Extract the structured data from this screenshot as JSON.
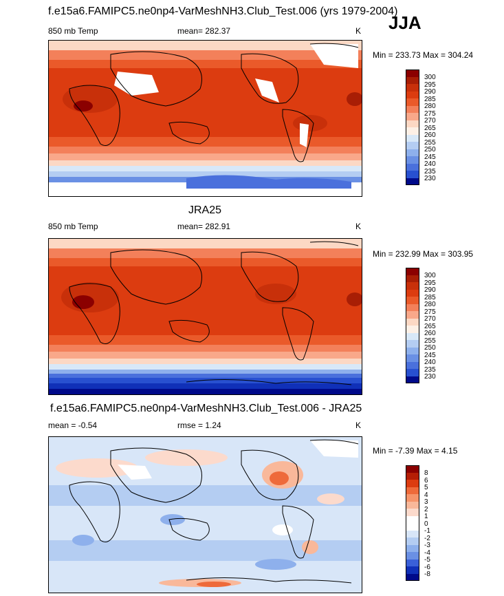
{
  "season": "JJA",
  "panels": [
    {
      "id": "model",
      "title": "f.e15a6.FAMIPC5.ne0np4-VarMeshNH3.Club_Test.006 (yrs 1979-2004)",
      "left_label": "850 mb Temp",
      "center_label": "mean= 282.37",
      "right_label": "K",
      "minmax": "Min = 233.73 Max = 304.24",
      "colorbar_labels": [
        "300",
        "295",
        "290",
        "285",
        "280",
        "275",
        "270",
        "265",
        "260",
        "255",
        "250",
        "245",
        "240",
        "235",
        "230"
      ]
    },
    {
      "id": "obs",
      "title": "JRA25",
      "left_label": "850 mb Temp",
      "center_label": "mean= 282.91",
      "right_label": "K",
      "minmax": "Min = 232.99 Max = 303.95",
      "colorbar_labels": [
        "300",
        "295",
        "290",
        "285",
        "280",
        "275",
        "270",
        "265",
        "260",
        "255",
        "250",
        "245",
        "240",
        "235",
        "230"
      ]
    },
    {
      "id": "diff",
      "title": "f.e15a6.FAMIPC5.ne0np4-VarMeshNH3.Club_Test.006 - JRA25",
      "left_label": "mean =  -0.54",
      "center_label": "rmse =   1.24",
      "right_label": "K",
      "minmax": "Min =  -7.39 Max =   4.15",
      "colorbar_labels": [
        "8",
        "6",
        "5",
        "4",
        "3",
        "2",
        "1",
        "0",
        "-1",
        "-2",
        "-3",
        "-4",
        "-5",
        "-6",
        "-8"
      ]
    }
  ],
  "colors": {
    "temp_scale": [
      "#8b0000",
      "#a81e05",
      "#c8300a",
      "#dc3c10",
      "#ea5a2a",
      "#f3805a",
      "#f9a88a",
      "#fcd8c4",
      "#fdf0e6",
      "#d8e8f8",
      "#b4cdf2",
      "#8eb0ec",
      "#6a90e4",
      "#4a70dc",
      "#2850d0",
      "#1030b8",
      "#000a8a"
    ],
    "diff_scale": [
      "#8b0000",
      "#b51e05",
      "#dc3c10",
      "#ee6a3a",
      "#f6946a",
      "#f9b89a",
      "#fcdacc",
      "#ffffff",
      "#ffffff",
      "#d8e6f8",
      "#b4cdf2",
      "#8eb0ec",
      "#6a90e4",
      "#3a60d8",
      "#1030b8",
      "#000a8a"
    ]
  }
}
